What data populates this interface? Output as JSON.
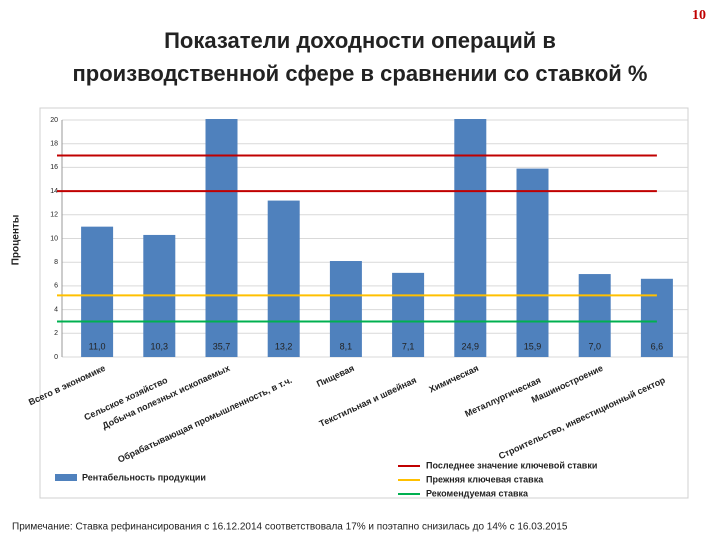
{
  "page_number": "10",
  "note": "Примечание: Ставка рефинансирования с 16.12.2014 соответствовала 17% и поэтапно снизилась до 14% с 16.03.2015",
  "chart_data": {
    "type": "bar",
    "title": [
      "Показатели доходности операций в",
      "производственной сфере в сравнении со ставкой %"
    ],
    "y_label": "Проценты",
    "categories": [
      "Всего в экономике",
      "Сельское хозяйство",
      "Добыча полезных ископаемых",
      "Обрабатывающая промышленность, в т.ч.",
      "Пищевая",
      "Текстильная и швейная",
      "Химическая",
      "Металлургическая",
      "Машиностроение",
      "Строительство, инвестиционный сектор"
    ],
    "series": [
      {
        "name": "Рентабельность продукции",
        "color": "#4f81bd",
        "values": [
          11.0,
          10.3,
          35.7,
          13.2,
          8.1,
          7.1,
          24.9,
          15.9,
          7.0,
          6.6
        ],
        "value_labels": [
          "11,0",
          "10,3",
          "35,7",
          "13,2",
          "8,1",
          "7,1",
          "24,9",
          "15,9",
          "7,0",
          "6,6"
        ]
      }
    ],
    "reference_lines": [
      {
        "name": "Последнее значение ключевой ставки",
        "color": "#c00000",
        "values": [
          17,
          14
        ]
      },
      {
        "name": "Прежняя ключевая ставка",
        "color": "#ffc000",
        "values": [
          5.2
        ]
      },
      {
        "name": "Рекомендуемая ставка",
        "color": "#00b050",
        "values": [
          3
        ]
      }
    ],
    "ylim": [
      0,
      20
    ],
    "yticks": [
      0,
      2,
      4,
      6,
      8,
      10,
      12,
      14,
      16,
      18,
      20
    ],
    "grid": true
  }
}
